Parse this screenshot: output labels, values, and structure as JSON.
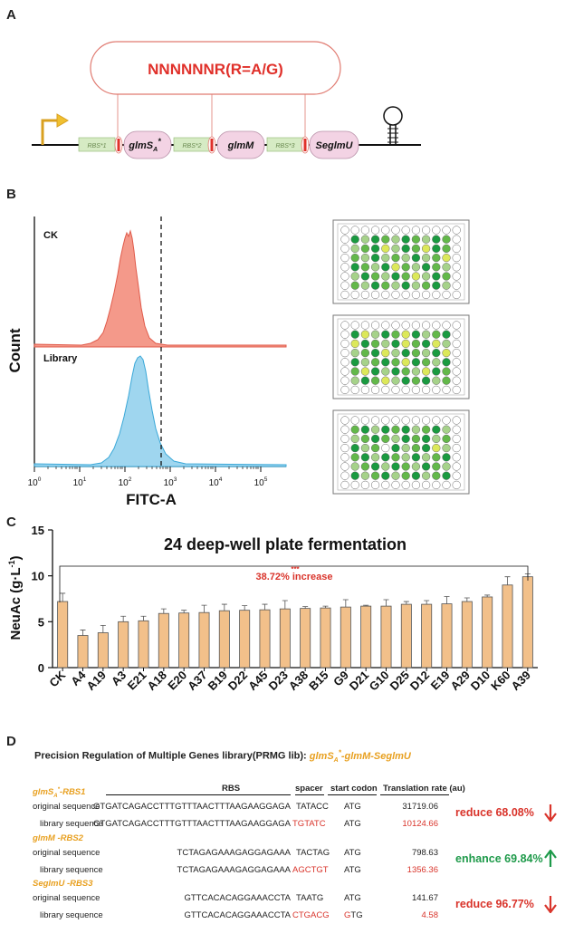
{
  "panels": {
    "a": "A",
    "b": "B",
    "c": "C",
    "d": "D"
  },
  "panel_a": {
    "motif": "NNNNNNR(R=A/G)",
    "rbs1": "RBS*1",
    "rbs2": "RBS*2",
    "rbs3": "RBS*3",
    "gene1_main": "glmS",
    "gene1_sub": "A",
    "gene1_sup": "*",
    "gene2": "glmM",
    "gene3": "SeglmU",
    "colors": {
      "motif": "#e0302a",
      "rbs_box": "#d6ebc4",
      "gene_box": "#f3d3e4",
      "promoter": "#f0c030"
    }
  },
  "panel_b": {
    "ck_label": "CK",
    "library_label": "Library",
    "y_label": "Count",
    "x_label": "FITC-A",
    "x_ticks": [
      {
        "base": "10",
        "exp": "0"
      },
      {
        "base": "10",
        "exp": "1"
      },
      {
        "base": "10",
        "exp": "2"
      },
      {
        "base": "10",
        "exp": "3"
      },
      {
        "base": "10",
        "exp": "4"
      },
      {
        "base": "10",
        "exp": "5"
      }
    ],
    "colors": {
      "ck": "#f4998a",
      "library": "#9fd6ef"
    },
    "plates": [
      [
        "WWWWWWWWWWWW",
        "WDLDMLDMLDMW",
        "WLMDYLDMYDMW",
        "WMLDLMLDLMYW",
        "WDMLDYMLDMLW",
        "WLDMLDMYLDMW",
        "WMLDMLDLMDLW",
        "WWWWWWWWWWWW"
      ],
      [
        "WWWWWWWWWWWW",
        "WDYLDMYDLMDW",
        "WYDMLDYMDYLW",
        "WLMDYLDMLDYW",
        "WDLMDMYDMLDW",
        "WMYDLDMLYDMW",
        "WLDMYLDMDLMW",
        "WWWWWWWWWWWW"
      ],
      [
        "WWWWWWWWWWWW",
        "WMDLDMDLMDLW",
        "WLMDMLDMDLMW",
        "WDLMWDLMDYLW",
        "WMDLDMLDLMDW",
        "WLMDLDMLDMLW",
        "WDLMDLMDLMDW",
        "WWWWWWWWWWWW"
      ]
    ]
  },
  "chart_data": {
    "type": "bar",
    "title": "24 deep-well plate fermentation",
    "ylabel": "NeuAc (g·L⁻¹)",
    "ylabel_main": "NeuAc (g·L",
    "ylabel_sup": "-1",
    "ylabel_end": ")",
    "xlabel": "",
    "ylim": [
      0,
      15
    ],
    "yticks": [
      0,
      5,
      10,
      15
    ],
    "categories": [
      "CK",
      "A4",
      "A19",
      "A3",
      "E21",
      "A18",
      "E20",
      "A37",
      "B19",
      "D22",
      "A45",
      "D23",
      "A38",
      "B15",
      "G9",
      "D21",
      "G10",
      "D25",
      "D12",
      "E19",
      "A29",
      "D10",
      "K60",
      "A39"
    ],
    "values": [
      7.2,
      3.5,
      3.8,
      5.0,
      5.1,
      5.9,
      5.95,
      6.0,
      6.2,
      6.25,
      6.3,
      6.4,
      6.45,
      6.5,
      6.6,
      6.7,
      6.7,
      6.9,
      6.9,
      6.95,
      7.2,
      7.7,
      9.0,
      9.9
    ],
    "errors": [
      0.9,
      0.6,
      0.8,
      0.6,
      0.5,
      0.5,
      0.3,
      0.8,
      0.7,
      0.5,
      0.6,
      0.9,
      0.2,
      0.2,
      0.8,
      0.1,
      0.7,
      0.3,
      0.4,
      0.8,
      0.4,
      0.2,
      0.9,
      0.3
    ],
    "annotation": "38.72% increase",
    "annotation_sig": "***",
    "bar_color": "#f2c08a"
  },
  "panel_d": {
    "title_main": "Precision Regulation of Multiple Genes library(PRMG lib): ",
    "title_hl_1": "glmS",
    "title_hl_sub": "A",
    "title_hl_sup": "*",
    "title_hl_2": "-glmM-SeglmU",
    "headers": {
      "rbs": "RBS",
      "spacer": "spacer",
      "start": "start  codon",
      "tr": "Translation rate (au)"
    },
    "groups": [
      {
        "name_main": "glmS",
        "name_sub": "A",
        "name_sup": "*",
        "name_suffix": "-RBS1",
        "orig_label": "original sequence",
        "lib_label": "library sequence",
        "orig_rbs": "GTGATCAGACCTTTGTTTAACTTTAAGAAGGAGA",
        "orig_spacer": "TATACC",
        "orig_start": "ATG",
        "orig_tr": "31719.06",
        "lib_rbs": "GTGATCAGACCTTTGTTTAACTTTAAGAAGGAGA",
        "lib_spacer": "TGTATC",
        "lib_start": "ATG",
        "lib_start_hl": "",
        "lib_tr": "10124.66",
        "change": "reduce  68.08%",
        "dir": "down"
      },
      {
        "name_main": "glmM",
        "name_sub": "",
        "name_sup": "",
        "name_suffix": " -RBS2",
        "orig_label": "original sequence",
        "lib_label": "library sequence",
        "orig_rbs": "TCTAGAGAAAGAGGAGAAA",
        "orig_spacer": "TACTAG",
        "orig_start": "ATG",
        "orig_tr": "798.63",
        "lib_rbs": "TCTAGAGAAAGAGGAGAAA",
        "lib_spacer": "AGCTGT",
        "lib_start": "ATG",
        "lib_start_hl": "",
        "lib_tr": "1356.36",
        "change": "enhance 69.84%",
        "dir": "up"
      },
      {
        "name_main": "SeglmU",
        "name_sub": "",
        "name_sup": "",
        "name_suffix": " -RBS3",
        "orig_label": "original sequence",
        "lib_label": "library sequence",
        "orig_rbs": "GTTCACACAGGAAACCTA",
        "orig_spacer": "TAATG",
        "orig_start": "ATG",
        "orig_tr": "141.67",
        "lib_rbs": "GTTCACACAGGAAACCTA",
        "lib_spacer": "CTGACG",
        "lib_start": "TG",
        "lib_start_hl": "G",
        "lib_tr": "4.58",
        "change": "reduce  96.77%",
        "dir": "down"
      }
    ],
    "colors": {
      "red": "#d9342b",
      "green": "#1e9a4a",
      "gene": "#e8a020"
    }
  }
}
